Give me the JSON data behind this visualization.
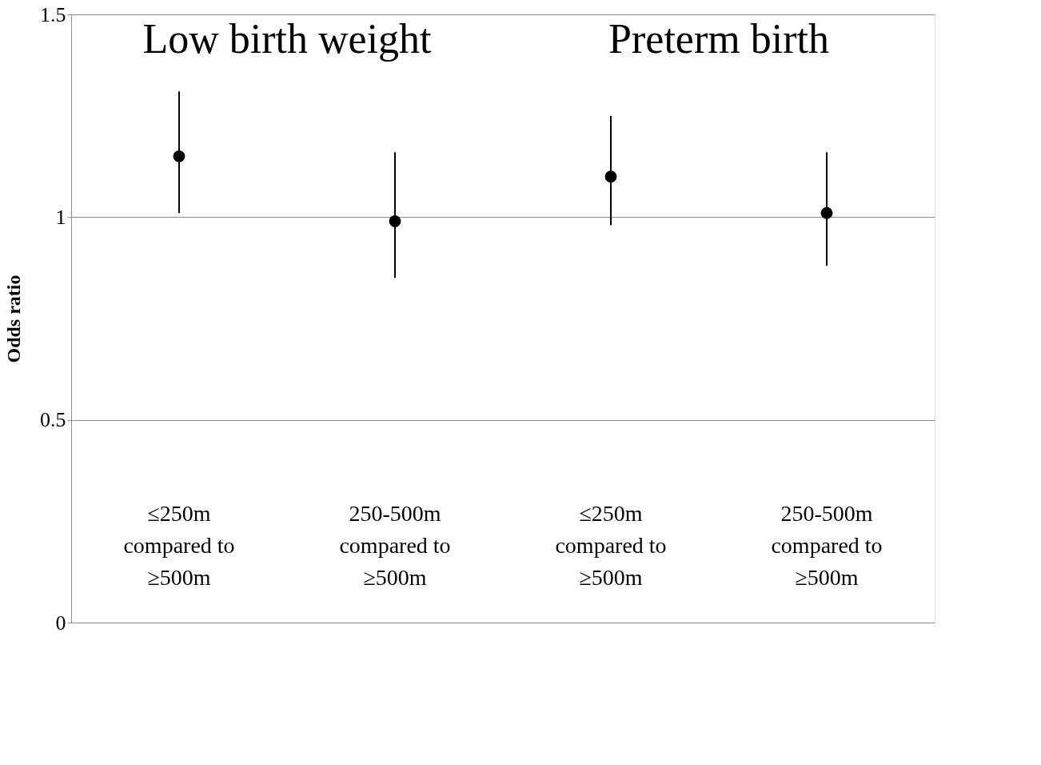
{
  "chart_data": {
    "type": "scatter",
    "ylabel": "Odds ratio",
    "categories": [
      "≤250m\ncompared to\n≥500m",
      "250-500m\ncompared to\n≥500m",
      "≤250m\ncompared to\n≥500m",
      "250-500m\ncompared to\n≥500m"
    ],
    "values": [
      1.15,
      0.99,
      1.1,
      1.01
    ],
    "errors": [
      [
        1.01,
        1.31
      ],
      [
        0.85,
        1.16
      ],
      [
        0.98,
        1.25
      ],
      [
        0.88,
        1.16
      ]
    ],
    "color": "#000000",
    "annotations": [
      "Low birth weight",
      "Preterm birth"
    ],
    "ylim": [
      0,
      1.5
    ],
    "yticks": [
      0,
      0.5,
      1,
      1.5
    ],
    "grid": "y",
    "marker": "circle"
  }
}
